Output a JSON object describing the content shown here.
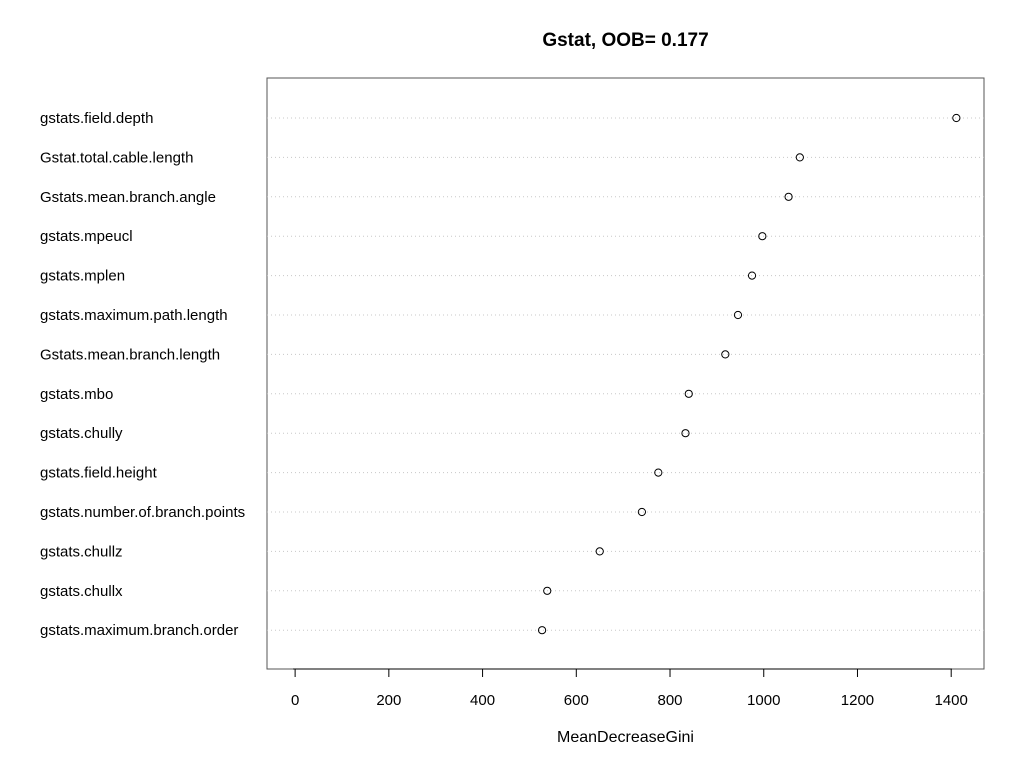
{
  "chart_data": {
    "type": "scatter",
    "title": "Gstat, OOB= 0.177",
    "xlabel": "MeanDecreaseGini",
    "ylabel": "",
    "xlim": [
      -60,
      1470
    ],
    "xticks": [
      0,
      200,
      400,
      600,
      800,
      1000,
      1200,
      1400
    ],
    "grid": "horizontal dotted",
    "categories": [
      "gstats.field.depth",
      "Gstat.total.cable.length",
      "Gstats.mean.branch.angle",
      "gstats.mpeucl",
      "gstats.mplen",
      "gstats.maximum.path.length",
      "Gstats.mean.branch.length",
      "gstats.mbo",
      "gstats.chully",
      "gstats.field.height",
      "gstats.number.of.branch.points",
      "gstats.chullz",
      "gstats.chullx",
      "gstats.maximum.branch.order"
    ],
    "values": [
      1411,
      1077,
      1053,
      997,
      975,
      945,
      918,
      840,
      833,
      775,
      740,
      650,
      538,
      527
    ]
  }
}
